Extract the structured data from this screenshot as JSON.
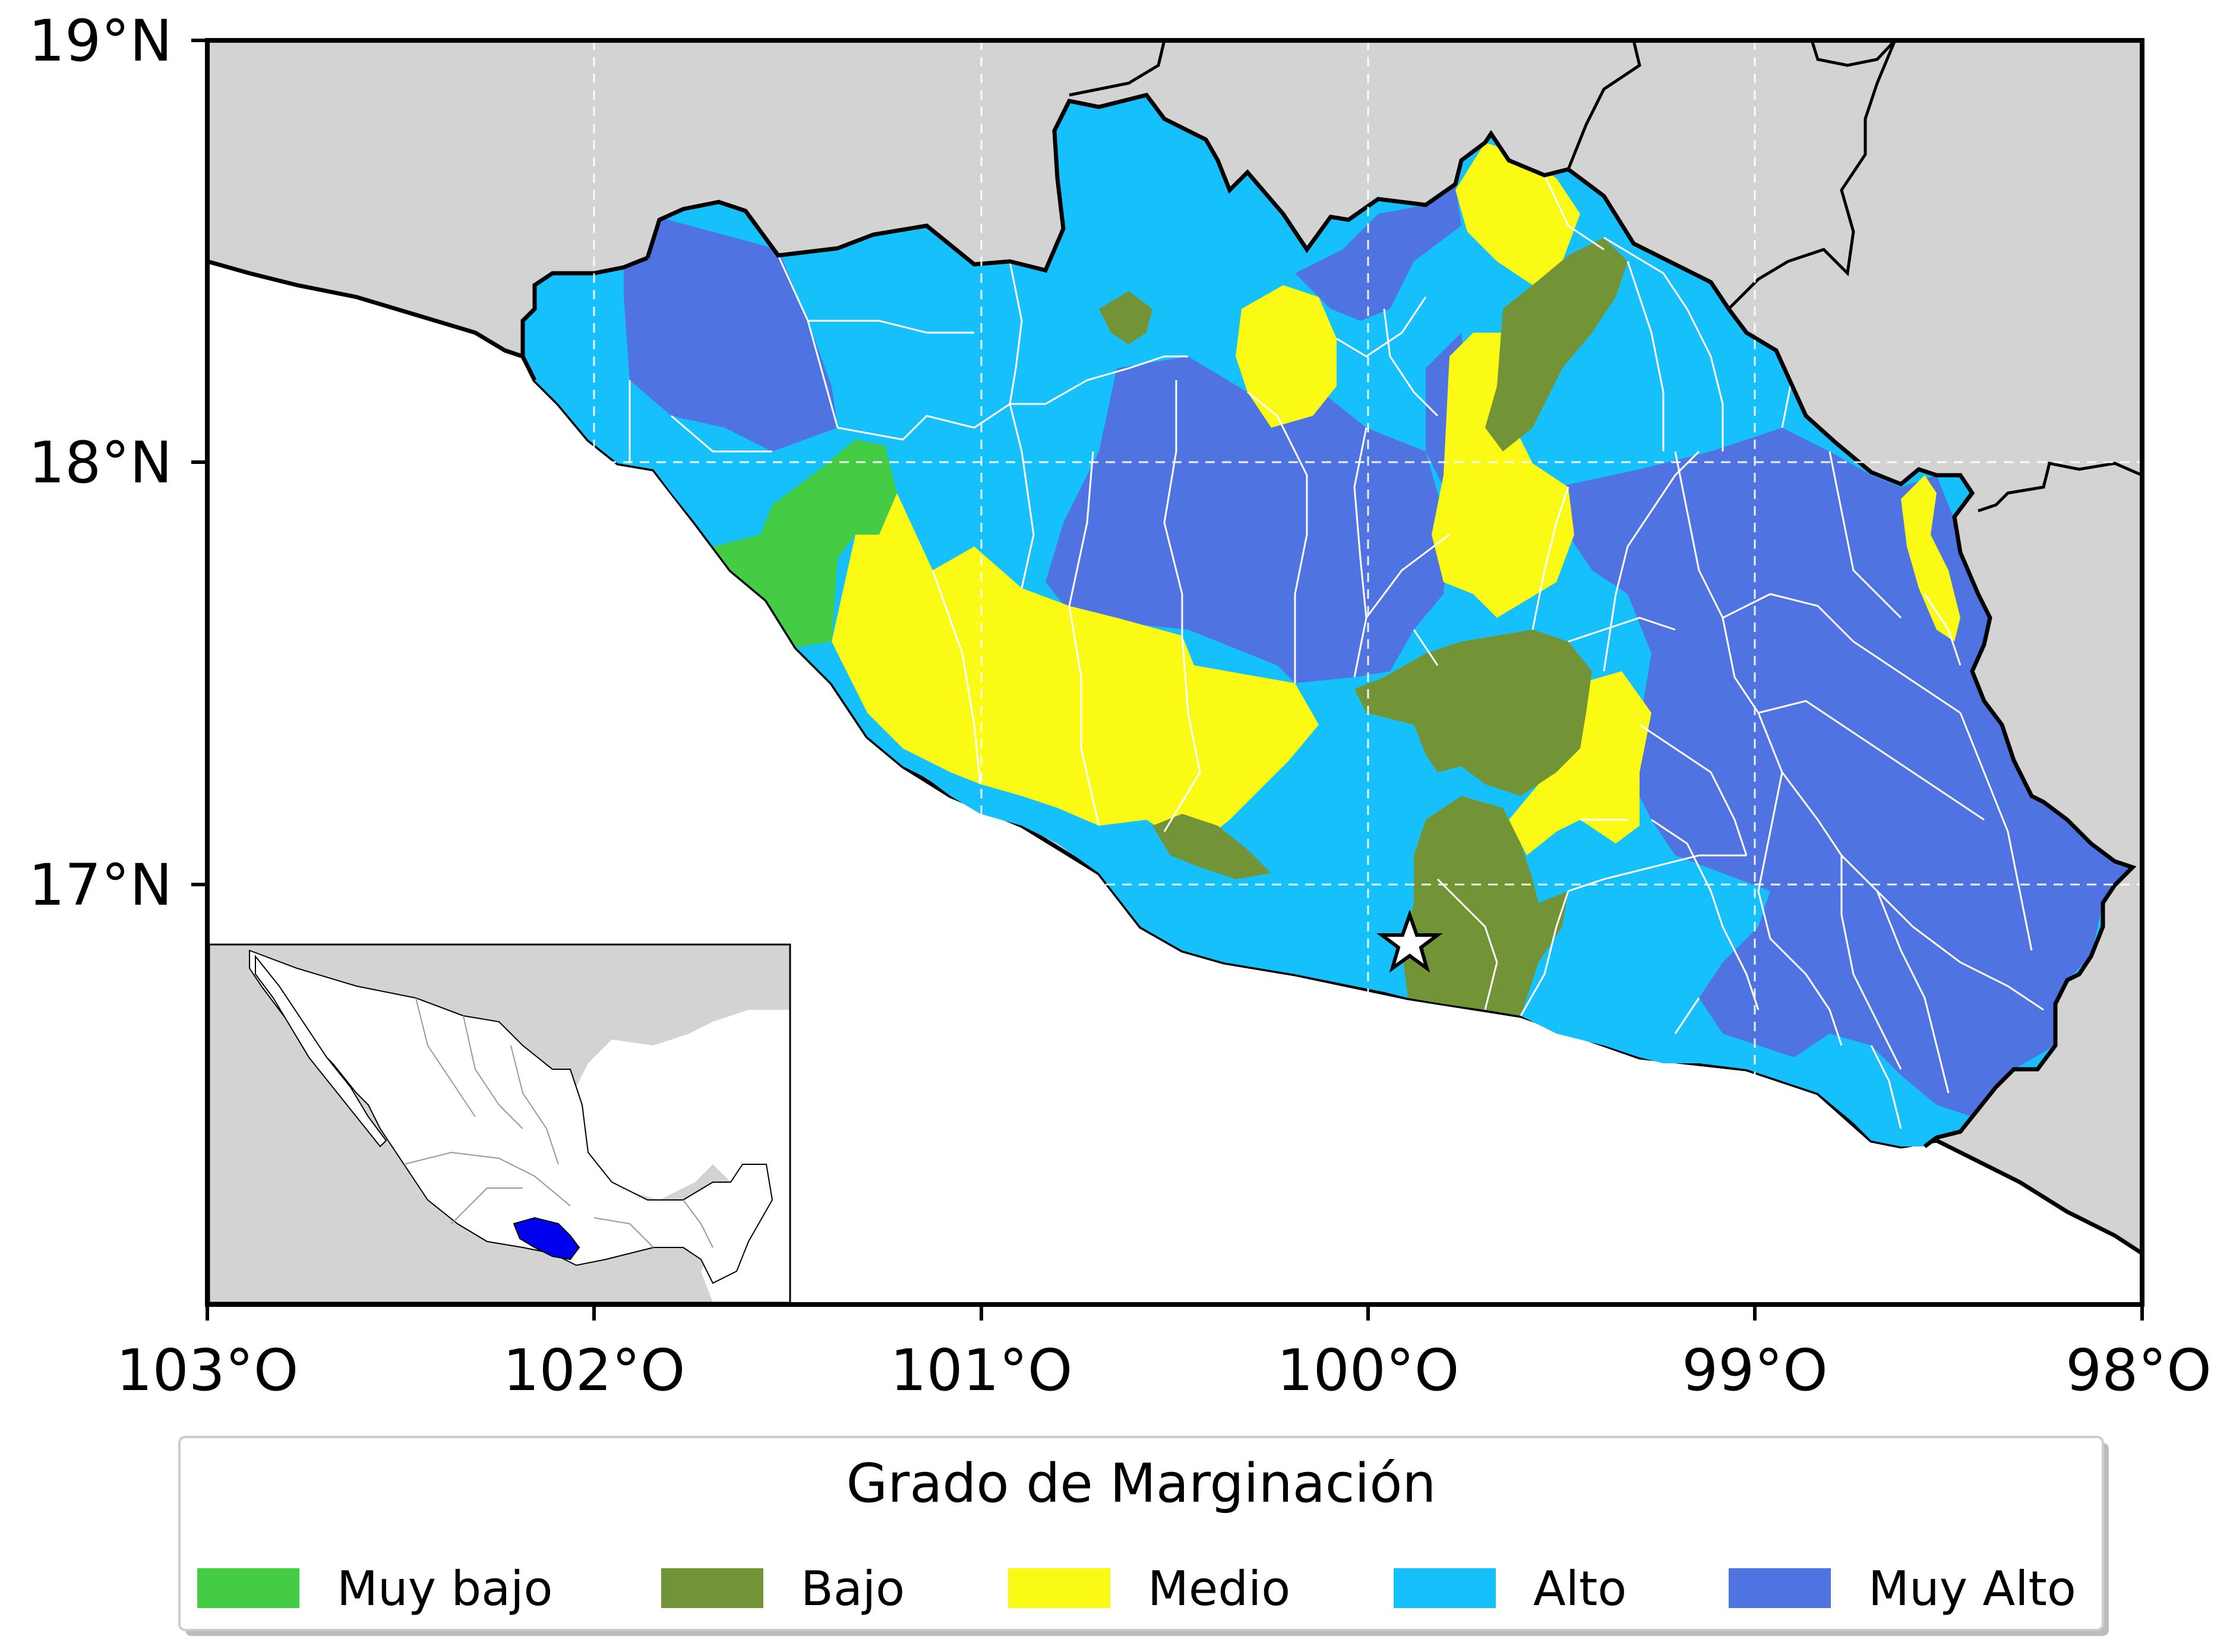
{
  "map": {
    "lat_ticks": [
      "19°N",
      "18°N",
      "17°N"
    ],
    "lon_ticks": [
      "103°O",
      "102°O",
      "101°O",
      "100°O",
      "99°O",
      "98°O"
    ],
    "colors": {
      "land": "#d3d3d3",
      "ocean": "#ffffff",
      "muy_bajo": "#44cc44",
      "bajo": "#739436",
      "medio": "#fafa14",
      "alto": "#16c0fa",
      "muy_alto": "#4f73e0",
      "inset_highlight": "#0000ee"
    },
    "marker": "star-icon"
  },
  "legend": {
    "title": "Grado de Marginación",
    "items": [
      {
        "label": "Muy bajo",
        "color": "#44cc44"
      },
      {
        "label": "Bajo",
        "color": "#739436"
      },
      {
        "label": "Medio",
        "color": "#fafa14"
      },
      {
        "label": "Alto",
        "color": "#16c0fa"
      },
      {
        "label": "Muy Alto",
        "color": "#4f73e0"
      }
    ]
  }
}
